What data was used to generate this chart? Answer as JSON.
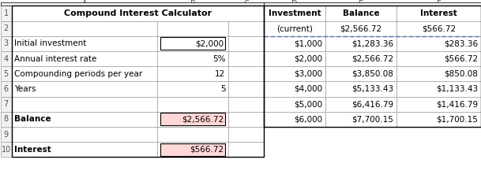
{
  "title": "Compound Interest Calculator",
  "left_labels": [
    "Initial investment",
    "Annual interest rate",
    "Compounding periods per year",
    "Years",
    "Balance",
    "Interest"
  ],
  "left_rows": [
    3,
    4,
    5,
    6,
    8,
    10
  ],
  "left_values": [
    "$2,000",
    "5%",
    "12",
    "5",
    "$2,566.72",
    "$566.72"
  ],
  "left_value_box": [
    true,
    false,
    false,
    false,
    true,
    true
  ],
  "left_value_box_color": [
    "#ffffff",
    null,
    null,
    null,
    "#ffd7d7",
    "#ffd7d7"
  ],
  "right_headers": [
    "Investment",
    "Balance",
    "Interest"
  ],
  "right_subheaders": [
    "(current)",
    "$2,566.72",
    "$566.72"
  ],
  "right_data": [
    [
      "$1,000",
      "$1,283.36",
      "$283.36"
    ],
    [
      "$2,000",
      "$2,566.72",
      "$566.72"
    ],
    [
      "$3,000",
      "$3,850.08",
      "$850.08"
    ],
    [
      "$4,000",
      "$5,133.43",
      "$1,133.43"
    ],
    [
      "$5,000",
      "$6,416.79",
      "$1,416.79"
    ],
    [
      "$6,000",
      "$7,700.15",
      "$1,700.15"
    ]
  ],
  "bg_color": "#ffffff",
  "header_bg": "#f2f2f2",
  "grid_color": "#a0a0a0",
  "text_color": "#000000"
}
